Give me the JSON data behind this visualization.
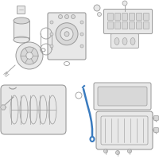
{
  "bg_color": "#ffffff",
  "line_color": "#999999",
  "highlight_color": "#3a7bbf",
  "fig_size": [
    2.0,
    2.0
  ],
  "dpi": 100
}
